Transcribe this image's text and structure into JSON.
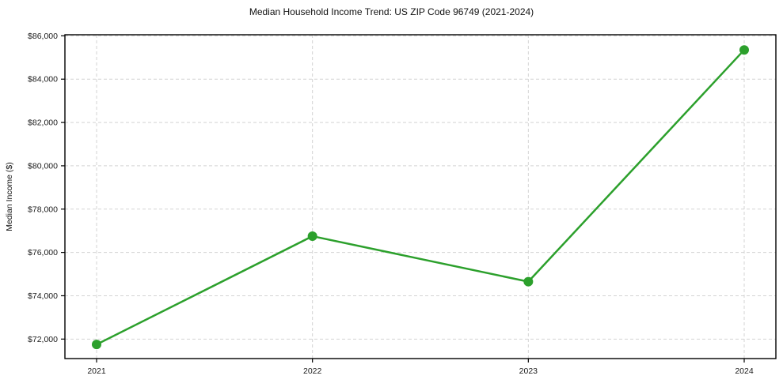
{
  "chart_data": {
    "type": "line",
    "title": "Median Household Income Trend: US ZIP Code 96749 (2021-2024)",
    "xlabel": "",
    "ylabel": "Median Income ($)",
    "categories": [
      "2021",
      "2022",
      "2023",
      "2024"
    ],
    "series": [
      {
        "name": "Median Household Income",
        "values": [
          71750,
          76750,
          74650,
          85350
        ]
      }
    ],
    "ylim": [
      71100,
      86050
    ],
    "yticks": [
      72000,
      74000,
      76000,
      78000,
      80000,
      82000,
      84000,
      86000
    ],
    "ytick_labels": [
      "$72,000",
      "$74,000",
      "$76,000",
      "$78,000",
      "$80,000",
      "$82,000",
      "$84,000",
      "$86,000"
    ],
    "grid": true,
    "grid_style": "dashed",
    "legend": "none",
    "colors": {
      "line": "#2ca02c",
      "marker": "#2ca02c",
      "grid": "#d3d3d3",
      "spine": "#000000",
      "text": "#1a1a1a",
      "background": "#ffffff"
    }
  }
}
